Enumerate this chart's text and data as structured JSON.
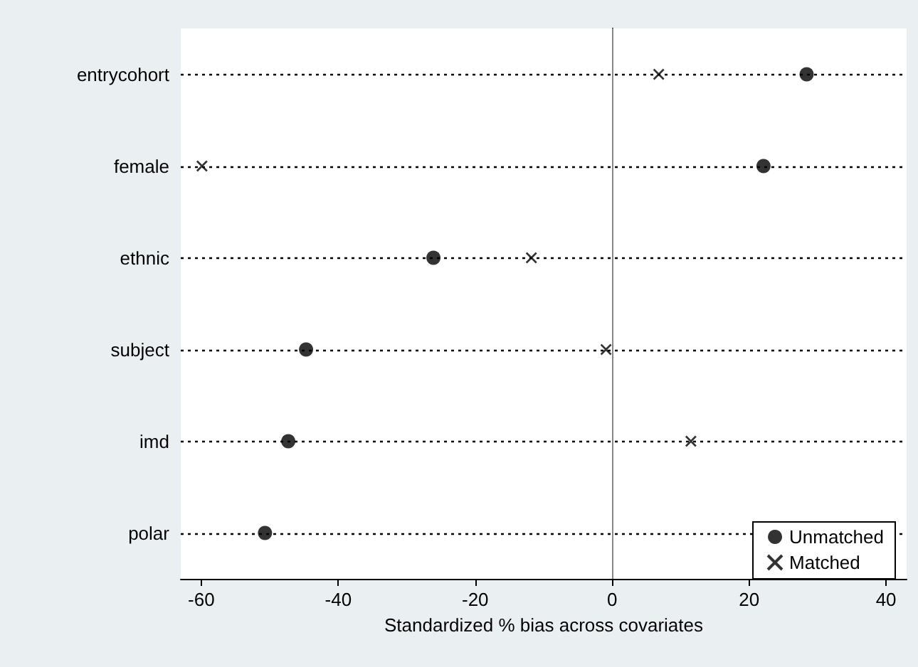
{
  "chart_data": {
    "type": "scatter",
    "orientation": "horizontal",
    "xlabel": "Standardized % bias across covariates",
    "categories": [
      "entrycohort",
      "female",
      "ethnic",
      "subject",
      "imd",
      "polar"
    ],
    "series": [
      {
        "name": "Unmatched",
        "color": "#000000",
        "marker": "circle",
        "values": [
          28.4,
          22.1,
          -26.1,
          -44.7,
          -47.3,
          -50.7
        ]
      },
      {
        "name": "Matched",
        "color": "#000000",
        "marker": "cross",
        "values": [
          6.8,
          -59.9,
          -11.8,
          -0.9,
          11.5,
          null
        ]
      }
    ],
    "xlim": [
      -63,
      43
    ],
    "xticks": [
      -60,
      -40,
      -20,
      0,
      20,
      40
    ],
    "grid": "y",
    "legend": "bottom right",
    "ref_lines": [
      {
        "axis": "x",
        "value": 0,
        "color": "#888888"
      }
    ]
  }
}
